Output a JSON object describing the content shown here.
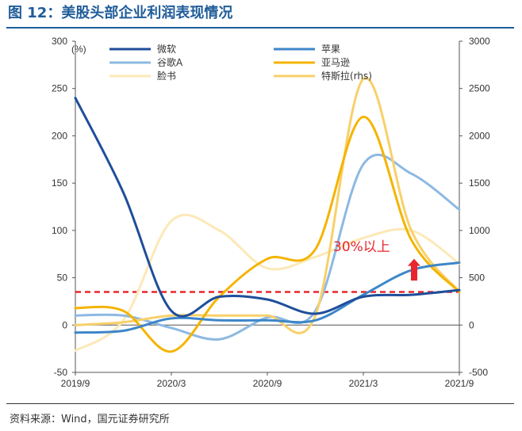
{
  "title": "图 12：美股头部企业利润表现情况",
  "source": "资料来源：Wind，国元证券研究所",
  "chart_data": {
    "type": "line",
    "unit_label": "(%)",
    "x_ticks": [
      "2019/9",
      "2020/3",
      "2020/9",
      "2021/3",
      "2021/9"
    ],
    "x_range": [
      0,
      8
    ],
    "y_left": {
      "ticks": [
        -50,
        0,
        50,
        100,
        150,
        200,
        250,
        300
      ],
      "range": [
        -50,
        300
      ]
    },
    "y_right": {
      "ticks": [
        -500,
        0,
        500,
        1000,
        1500,
        2000,
        2500,
        3000
      ],
      "range": [
        -500,
        3000
      ]
    },
    "series": [
      {
        "name": "微软",
        "color": "#1f4e9a",
        "width": 3,
        "axis": "left",
        "x": [
          0,
          1,
          2,
          3,
          4,
          5,
          6,
          7,
          8
        ],
        "y": [
          240,
          140,
          15,
          30,
          27,
          12,
          30,
          32,
          37
        ]
      },
      {
        "name": "苹果",
        "color": "#3d86c9",
        "width": 3,
        "axis": "left",
        "x": [
          0,
          1,
          2,
          3,
          4,
          5,
          6,
          7,
          8
        ],
        "y": [
          -8,
          -6,
          7,
          5,
          5,
          5,
          32,
          58,
          66
        ]
      },
      {
        "name": "谷歌A",
        "color": "#8db9e2",
        "width": 3,
        "axis": "left",
        "x": [
          0,
          1,
          2,
          3,
          4,
          5,
          6,
          7,
          8
        ],
        "y": [
          10,
          10,
          -3,
          -15,
          8,
          15,
          170,
          160,
          122
        ]
      },
      {
        "name": "亚马逊",
        "color": "#f4b400",
        "width": 3,
        "axis": "left",
        "x": [
          0,
          1,
          2,
          3,
          4,
          5,
          6,
          7,
          8
        ],
        "y": [
          18,
          15,
          -28,
          30,
          70,
          80,
          220,
          90,
          35
        ]
      },
      {
        "name": "脸书",
        "color": "#fce9b8",
        "width": 3,
        "axis": "left",
        "x": [
          0,
          1,
          2,
          3,
          4,
          5,
          6,
          7,
          8
        ],
        "y": [
          -27,
          5,
          110,
          100,
          60,
          72,
          92,
          100,
          65
        ]
      },
      {
        "name": "特斯拉(rhs)",
        "color": "#f8d06a",
        "width": 3,
        "axis": "right",
        "x": [
          0,
          1,
          2,
          3,
          4,
          5,
          6,
          7,
          8
        ],
        "y": [
          0,
          30,
          100,
          100,
          100,
          100,
          2600,
          1000,
          350
        ]
      }
    ],
    "reference_line": {
      "y": 35,
      "color": "#e8262b",
      "style": "dashed"
    },
    "annotation": {
      "text": "30%以上",
      "color": "#e8262b"
    }
  }
}
